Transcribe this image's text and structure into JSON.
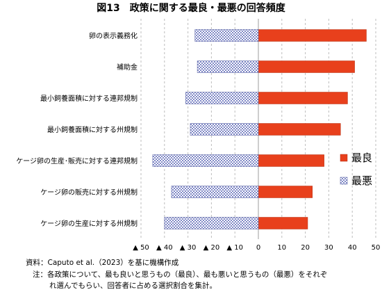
{
  "chart_data": {
    "type": "bar",
    "orientation": "horizontal",
    "title": "図13　政策に関する最良・最悪の回答頻度",
    "categories": [
      "卵の表示義務化",
      "補助金",
      "最小飼養面積に対する連邦規制",
      "最小飼養面積に対する州規制",
      "ケージ卵の生産･販売に対する連邦規制",
      "ケージ卵の販売に対する州規制",
      "ケージ卵の生産に対する州規制"
    ],
    "series": [
      {
        "name": "最良",
        "color": "#e8401c",
        "values": [
          46,
          41,
          38,
          35,
          28,
          23,
          21
        ]
      },
      {
        "name": "最悪",
        "color": "#9ea8dc",
        "values": [
          -27,
          -26,
          -31,
          -29,
          -45,
          -37,
          -40
        ]
      }
    ],
    "xlim": [
      -50,
      50
    ],
    "xticks": [
      -50,
      -40,
      -30,
      -20,
      -10,
      0,
      10,
      20,
      30,
      40,
      50
    ],
    "xtick_labels": [
      "▲ 50",
      "▲ 40",
      "▲ 30",
      "▲ 20",
      "▲ 10",
      "0",
      "10",
      "20",
      "30",
      "40",
      "50"
    ],
    "grid": "vertical dashed",
    "legend_position": "right"
  },
  "footnotes": {
    "source": "資料：Caputo et al.（2023）を基に機構作成",
    "note_line1": "注：各政策について、最も良いと思うもの（最良）、最も悪いと思うもの（最悪）をそれぞ",
    "note_line2": "れ選んでもらい、回答者に占める選択割合を集計。"
  }
}
